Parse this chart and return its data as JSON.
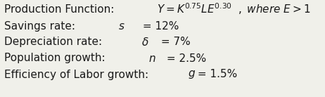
{
  "background_color": "#f0f0ea",
  "fontsize": 11,
  "line1_regular": "Production Function: ",
  "line1_math": "$Y = K^{0.75}LE^{0.30}$, $\\mathit{where}\\ E > 1$",
  "line2_regular": "Savings rate: ",
  "line2_math": "$s$",
  "line2_end": " = 12%",
  "line3_regular": "Depreciation rate:",
  "line3_math": "$\\delta$",
  "line3_end": " = 7%",
  "line4_regular": "Population growth: ",
  "line4_math": "$n$",
  "line4_end": " = 2.5%",
  "line5_regular": "Efficiency of Labor growth:",
  "line5_math": "$g$",
  "line5_end": " = 1.5%",
  "text_color": "#1a1a1a",
  "fig_width": 4.62,
  "fig_height": 1.38,
  "dpi": 100
}
